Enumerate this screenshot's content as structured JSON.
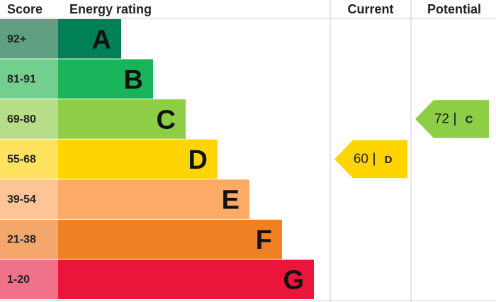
{
  "header": {
    "score": "Score",
    "rating": "Energy rating",
    "current": "Current",
    "potential": "Potential"
  },
  "bands": [
    {
      "score": "92+",
      "letter": "A",
      "color": "#008054",
      "score_color": "#5f9f82"
    },
    {
      "score": "81-91",
      "letter": "B",
      "color": "#19b459",
      "score_color": "#72cf8e"
    },
    {
      "score": "69-80",
      "letter": "C",
      "color": "#8dce46",
      "score_color": "#b6dd87"
    },
    {
      "score": "55-68",
      "letter": "D",
      "color": "#ffd500",
      "score_color": "#ffe35e"
    },
    {
      "score": "39-54",
      "letter": "E",
      "color": "#fcaa65",
      "score_color": "#fdc596"
    },
    {
      "score": "21-38",
      "letter": "F",
      "color": "#ef8023",
      "score_color": "#f4a66b"
    },
    {
      "score": "1-20",
      "letter": "G",
      "color": "#e9153b",
      "score_color": "#f0718a"
    }
  ],
  "current": {
    "value": "60",
    "letter": "D"
  },
  "potential": {
    "value": "72",
    "letter": "C"
  }
}
